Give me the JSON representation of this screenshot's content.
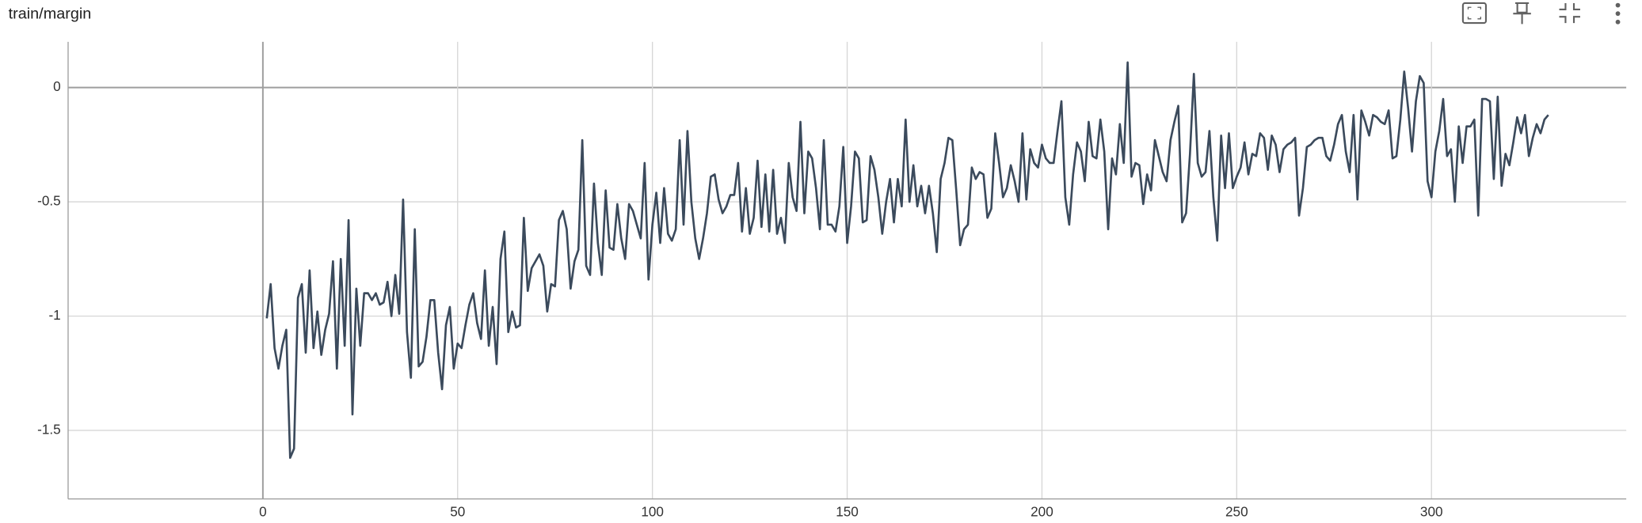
{
  "chart_data": {
    "type": "line",
    "title": "train/margin",
    "color": "#3b4a5c",
    "grid": true,
    "xlim": [
      -50,
      350
    ],
    "ylim": [
      -1.8,
      0.2
    ],
    "xticks": [
      0,
      50,
      100,
      150,
      200,
      250,
      300
    ],
    "yticks": [
      0,
      -0.5,
      -1,
      -1.5
    ],
    "x": [
      1,
      2,
      3,
      4,
      5,
      6,
      7,
      8,
      9,
      10,
      11,
      12,
      13,
      14,
      15,
      16,
      17,
      18,
      19,
      20,
      21,
      22,
      23,
      24,
      25,
      26,
      27,
      28,
      29,
      30,
      31,
      32,
      33,
      34,
      35,
      36,
      37,
      38,
      39,
      40,
      41,
      42,
      43,
      44,
      45,
      46,
      47,
      48,
      49,
      50,
      51,
      52,
      53,
      54,
      55,
      56,
      57,
      58,
      59,
      60,
      61,
      62,
      63,
      64,
      65,
      66,
      67,
      68,
      69,
      70,
      71,
      72,
      73,
      74,
      75,
      76,
      77,
      78,
      79,
      80,
      81,
      82,
      83,
      84,
      85,
      86,
      87,
      88,
      89,
      90,
      91,
      92,
      93,
      94,
      95,
      96,
      97,
      98,
      99,
      100,
      101,
      102,
      103,
      104,
      105,
      106,
      107,
      108,
      109,
      110,
      111,
      112,
      113,
      114,
      115,
      116,
      117,
      118,
      119,
      120,
      121,
      122,
      123,
      124,
      125,
      126,
      127,
      128,
      129,
      130,
      131,
      132,
      133,
      134,
      135,
      136,
      137,
      138,
      139,
      140,
      141,
      142,
      143,
      144,
      145,
      146,
      147,
      148,
      149,
      150,
      151,
      152,
      153,
      154,
      155,
      156,
      157,
      158,
      159,
      160,
      161,
      162,
      163,
      164,
      165,
      166,
      167,
      168,
      169,
      170,
      171,
      172,
      173,
      174,
      175,
      176,
      177,
      178,
      179,
      180,
      181,
      182,
      183,
      184,
      185,
      186,
      187,
      188,
      189,
      190,
      191,
      192,
      193,
      194,
      195,
      196,
      197,
      198,
      199,
      200,
      201,
      202,
      203,
      204,
      205,
      206,
      207,
      208,
      209,
      210,
      211,
      212,
      213,
      214,
      215,
      216,
      217,
      218,
      219,
      220,
      221,
      222,
      223,
      224,
      225,
      226,
      227,
      228,
      229,
      230,
      231,
      232,
      233,
      234,
      235,
      236,
      237,
      238,
      239,
      240,
      241,
      242,
      243,
      244,
      245,
      246,
      247,
      248,
      249,
      250,
      251,
      252,
      253,
      254,
      255,
      256,
      257,
      258,
      259,
      260,
      261,
      262,
      263,
      264,
      265,
      266,
      267,
      268,
      269,
      270,
      271,
      272,
      273,
      274,
      275,
      276,
      277,
      278,
      279,
      280,
      281,
      282,
      283,
      284,
      285,
      286,
      287,
      288,
      289,
      290,
      291,
      292,
      293,
      294,
      295,
      296,
      297,
      298,
      299,
      300,
      301,
      302,
      303,
      304,
      305,
      306,
      307,
      308,
      309,
      310,
      311,
      312,
      313,
      314,
      315,
      316,
      317,
      318,
      319,
      320,
      321,
      322,
      323,
      324,
      325,
      326,
      327,
      328,
      329,
      330
    ],
    "values": [
      -1.01,
      -0.86,
      -1.14,
      -1.23,
      -1.13,
      -1.06,
      -1.62,
      -1.58,
      -0.92,
      -0.86,
      -1.16,
      -0.8,
      -1.14,
      -0.98,
      -1.17,
      -1.06,
      -0.99,
      -0.76,
      -1.23,
      -0.75,
      -1.13,
      -0.58,
      -1.43,
      -0.88,
      -1.13,
      -0.9,
      -0.9,
      -0.93,
      -0.9,
      -0.95,
      -0.94,
      -0.85,
      -1.0,
      -0.82,
      -0.99,
      -0.49,
      -1.07,
      -1.27,
      -0.62,
      -1.22,
      -1.2,
      -1.09,
      -0.93,
      -0.93,
      -1.16,
      -1.32,
      -1.04,
      -0.96,
      -1.23,
      -1.12,
      -1.14,
      -1.04,
      -0.95,
      -0.9,
      -1.03,
      -1.1,
      -0.8,
      -1.13,
      -0.96,
      -1.21,
      -0.75,
      -0.63,
      -1.07,
      -0.98,
      -1.05,
      -1.04,
      -0.57,
      -0.89,
      -0.79,
      -0.76,
      -0.73,
      -0.78,
      -0.98,
      -0.86,
      -0.87,
      -0.58,
      -0.54,
      -0.62,
      -0.88,
      -0.76,
      -0.71,
      -0.23,
      -0.78,
      -0.82,
      -0.42,
      -0.68,
      -0.82,
      -0.45,
      -0.7,
      -0.71,
      -0.51,
      -0.66,
      -0.75,
      -0.51,
      -0.54,
      -0.6,
      -0.66,
      -0.33,
      -0.84,
      -0.6,
      -0.46,
      -0.68,
      -0.44,
      -0.64,
      -0.67,
      -0.62,
      -0.23,
      -0.6,
      -0.19,
      -0.5,
      -0.66,
      -0.75,
      -0.66,
      -0.55,
      -0.39,
      -0.38,
      -0.49,
      -0.55,
      -0.52,
      -0.47,
      -0.47,
      -0.33,
      -0.63,
      -0.44,
      -0.64,
      -0.57,
      -0.32,
      -0.61,
      -0.38,
      -0.63,
      -0.36,
      -0.64,
      -0.57,
      -0.68,
      -0.33,
      -0.48,
      -0.54,
      -0.15,
      -0.55,
      -0.28,
      -0.31,
      -0.44,
      -0.62,
      -0.23,
      -0.6,
      -0.6,
      -0.63,
      -0.52,
      -0.26,
      -0.68,
      -0.52,
      -0.28,
      -0.31,
      -0.59,
      -0.58,
      -0.3,
      -0.36,
      -0.48,
      -0.64,
      -0.5,
      -0.4,
      -0.59,
      -0.4,
      -0.52,
      -0.14,
      -0.5,
      -0.34,
      -0.52,
      -0.43,
      -0.55,
      -0.43,
      -0.55,
      -0.72,
      -0.4,
      -0.33,
      -0.22,
      -0.23,
      -0.45,
      -0.69,
      -0.62,
      -0.6,
      -0.35,
      -0.4,
      -0.37,
      -0.38,
      -0.57,
      -0.53,
      -0.2,
      -0.33,
      -0.48,
      -0.44,
      -0.34,
      -0.41,
      -0.5,
      -0.2,
      -0.49,
      -0.27,
      -0.33,
      -0.35,
      -0.25,
      -0.31,
      -0.33,
      -0.33,
      -0.19,
      -0.06,
      -0.48,
      -0.6,
      -0.38,
      -0.24,
      -0.28,
      -0.41,
      -0.15,
      -0.3,
      -0.31,
      -0.14,
      -0.28,
      -0.62,
      -0.31,
      -0.38,
      -0.16,
      -0.33,
      0.11,
      -0.39,
      -0.33,
      -0.34,
      -0.51,
      -0.38,
      -0.45,
      -0.23,
      -0.3,
      -0.37,
      -0.41,
      -0.23,
      -0.15,
      -0.08,
      -0.59,
      -0.55,
      -0.29,
      0.06,
      -0.33,
      -0.39,
      -0.37,
      -0.19,
      -0.48,
      -0.67,
      -0.21,
      -0.44,
      -0.2,
      -0.44,
      -0.39,
      -0.35,
      -0.24,
      -0.38,
      -0.29,
      -0.3,
      -0.2,
      -0.22,
      -0.36,
      -0.21,
      -0.25,
      -0.37,
      -0.27,
      -0.25,
      -0.24,
      -0.22,
      -0.56,
      -0.44,
      -0.26,
      -0.25,
      -0.23,
      -0.22,
      -0.22,
      -0.3,
      -0.32,
      -0.25,
      -0.16,
      -0.12,
      -0.28,
      -0.37,
      -0.12,
      -0.49,
      -0.1,
      -0.15,
      -0.21,
      -0.12,
      -0.13,
      -0.15,
      -0.16,
      -0.1,
      -0.31,
      -0.3,
      -0.14,
      0.07,
      -0.09,
      -0.28,
      -0.06,
      0.05,
      0.02,
      -0.41,
      -0.48,
      -0.28,
      -0.19,
      -0.05,
      -0.3,
      -0.27,
      -0.5,
      -0.17,
      -0.33,
      -0.17,
      -0.17,
      -0.14,
      -0.56,
      -0.05,
      -0.05,
      -0.06,
      -0.4,
      -0.04,
      -0.43,
      -0.29,
      -0.34,
      -0.24,
      -0.13,
      -0.2,
      -0.12,
      -0.3,
      -0.22,
      -0.16,
      -0.2,
      -0.14,
      -0.12
    ]
  }
}
